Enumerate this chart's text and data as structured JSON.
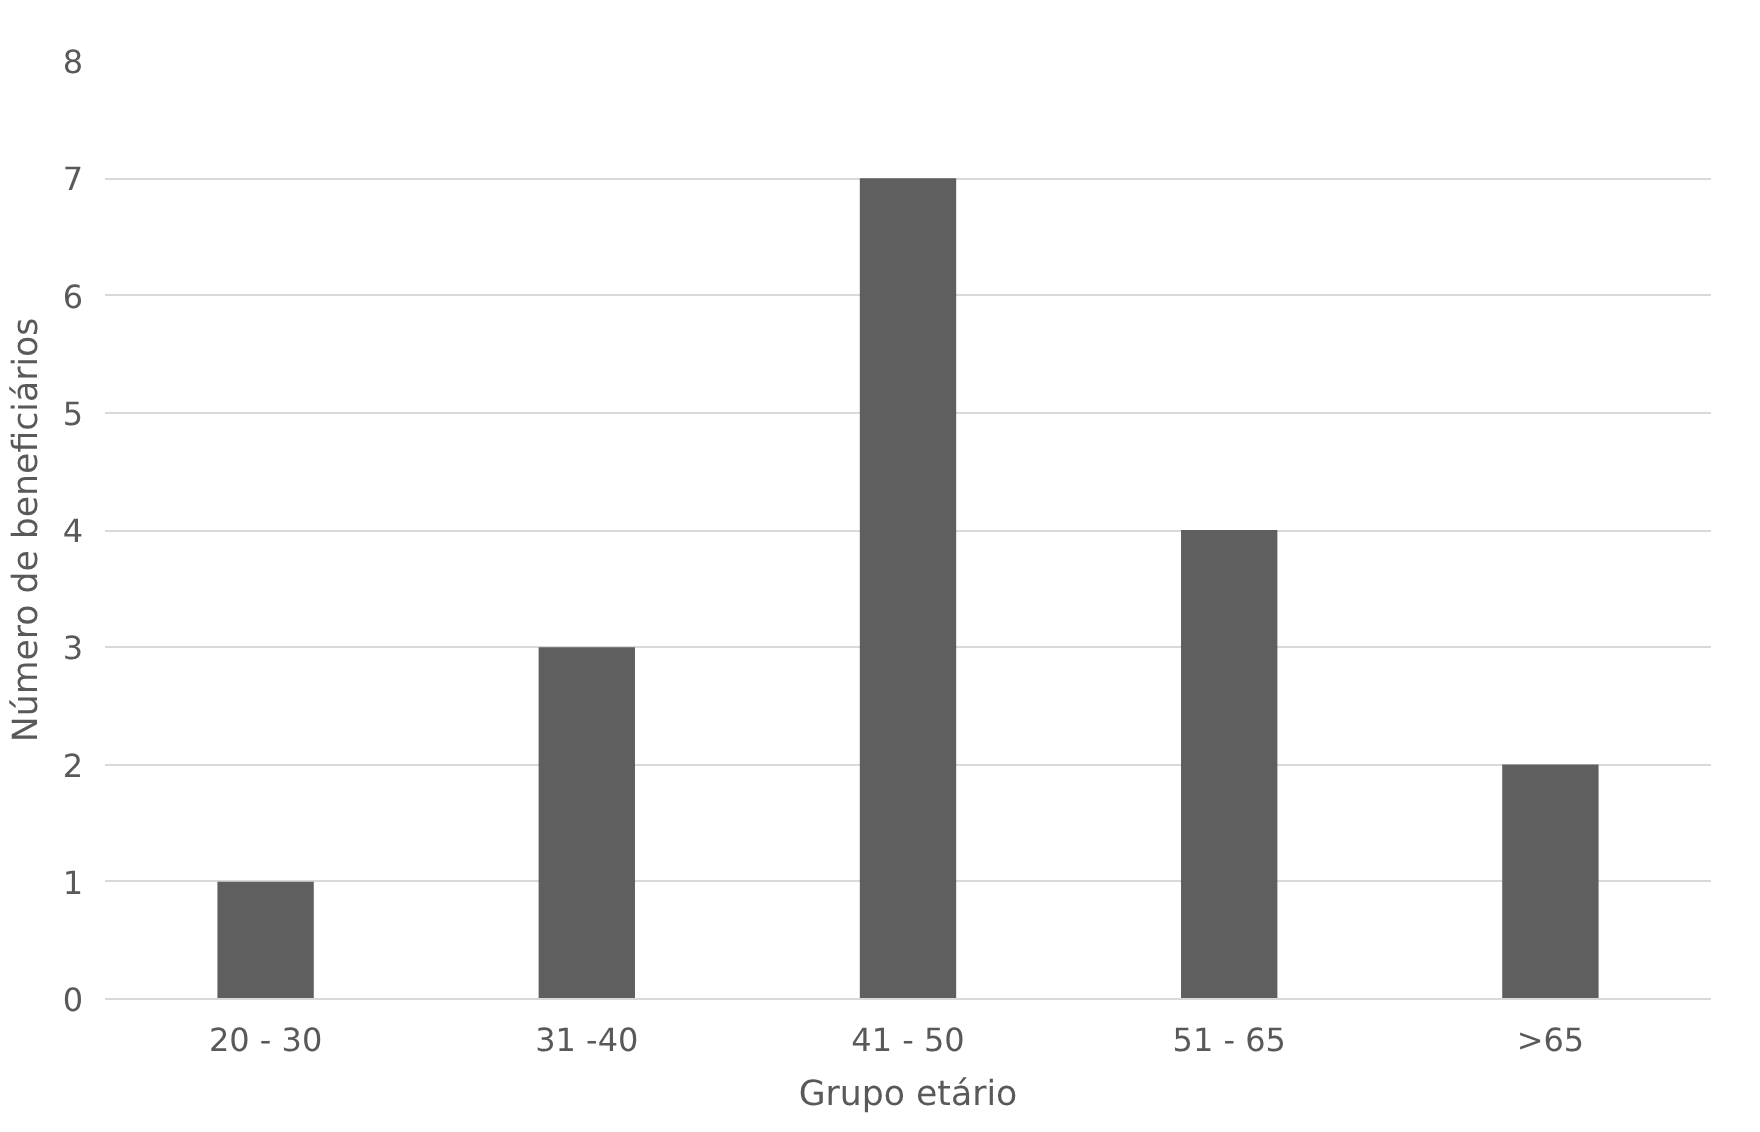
{
  "chart_data": {
    "type": "bar",
    "xlabel": "Grupo etário",
    "ylabel": "Número de beneficiários",
    "categories": [
      "20 - 30",
      "31 -40",
      "41 - 50",
      "51 - 65",
      ">65"
    ],
    "values": [
      1,
      3,
      7,
      4,
      2
    ],
    "color": "#5f5f5f",
    "ylim": [
      0,
      8
    ],
    "yticks": [
      0,
      1,
      2,
      3,
      4,
      5,
      6,
      7,
      8
    ],
    "grid": "y"
  }
}
